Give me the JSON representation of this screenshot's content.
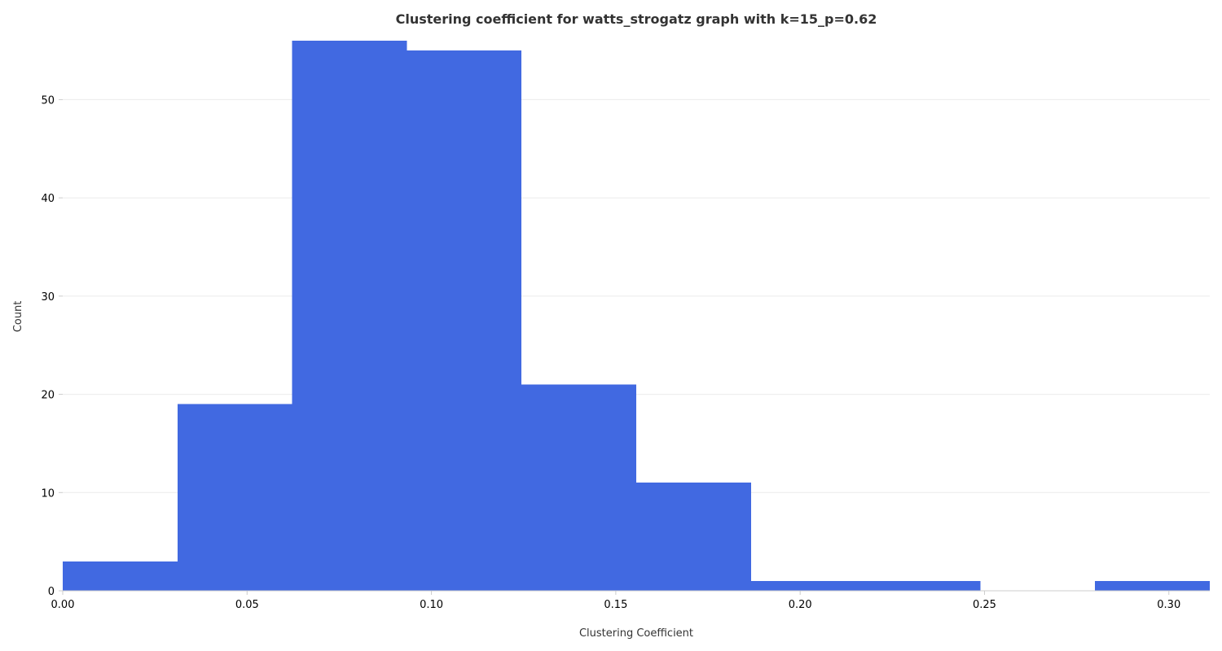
{
  "colors": {
    "bar": "#4169E1",
    "grid": "#ebebeb",
    "axis": "#cccccc",
    "text": "#333333"
  },
  "chart_data": {
    "type": "bar",
    "title": "Clustering coefficient for watts_strogatz graph with k=15_p=0.62",
    "xlabel": "Clustering Coefficient",
    "ylabel": "Count",
    "xlim": [
      0.0,
      0.3111
    ],
    "ylim": [
      0,
      56
    ],
    "grid": "horizontal",
    "x_ticks": [
      {
        "value": 0.0,
        "label": "0.00"
      },
      {
        "value": 0.05,
        "label": "0.05"
      },
      {
        "value": 0.1,
        "label": "0.10"
      },
      {
        "value": 0.15,
        "label": "0.15"
      },
      {
        "value": 0.2,
        "label": "0.20"
      },
      {
        "value": 0.25,
        "label": "0.25"
      },
      {
        "value": 0.3,
        "label": "0.30"
      }
    ],
    "y_ticks": [
      {
        "value": 0,
        "label": "0"
      },
      {
        "value": 10,
        "label": "10"
      },
      {
        "value": 20,
        "label": "20"
      },
      {
        "value": 30,
        "label": "30"
      },
      {
        "value": 40,
        "label": "40"
      },
      {
        "value": 50,
        "label": "50"
      }
    ],
    "bins": [
      {
        "start": 0.0,
        "end": 0.0311,
        "count": 3
      },
      {
        "start": 0.0311,
        "end": 0.0622,
        "count": 19
      },
      {
        "start": 0.0622,
        "end": 0.0933,
        "count": 56
      },
      {
        "start": 0.0933,
        "end": 0.1244,
        "count": 55
      },
      {
        "start": 0.1244,
        "end": 0.1556,
        "count": 21
      },
      {
        "start": 0.1556,
        "end": 0.1867,
        "count": 11
      },
      {
        "start": 0.1867,
        "end": 0.2178,
        "count": 1
      },
      {
        "start": 0.2178,
        "end": 0.2489,
        "count": 1
      },
      {
        "start": 0.2489,
        "end": 0.28,
        "count": 0
      },
      {
        "start": 0.28,
        "end": 0.3111,
        "count": 1
      }
    ]
  }
}
